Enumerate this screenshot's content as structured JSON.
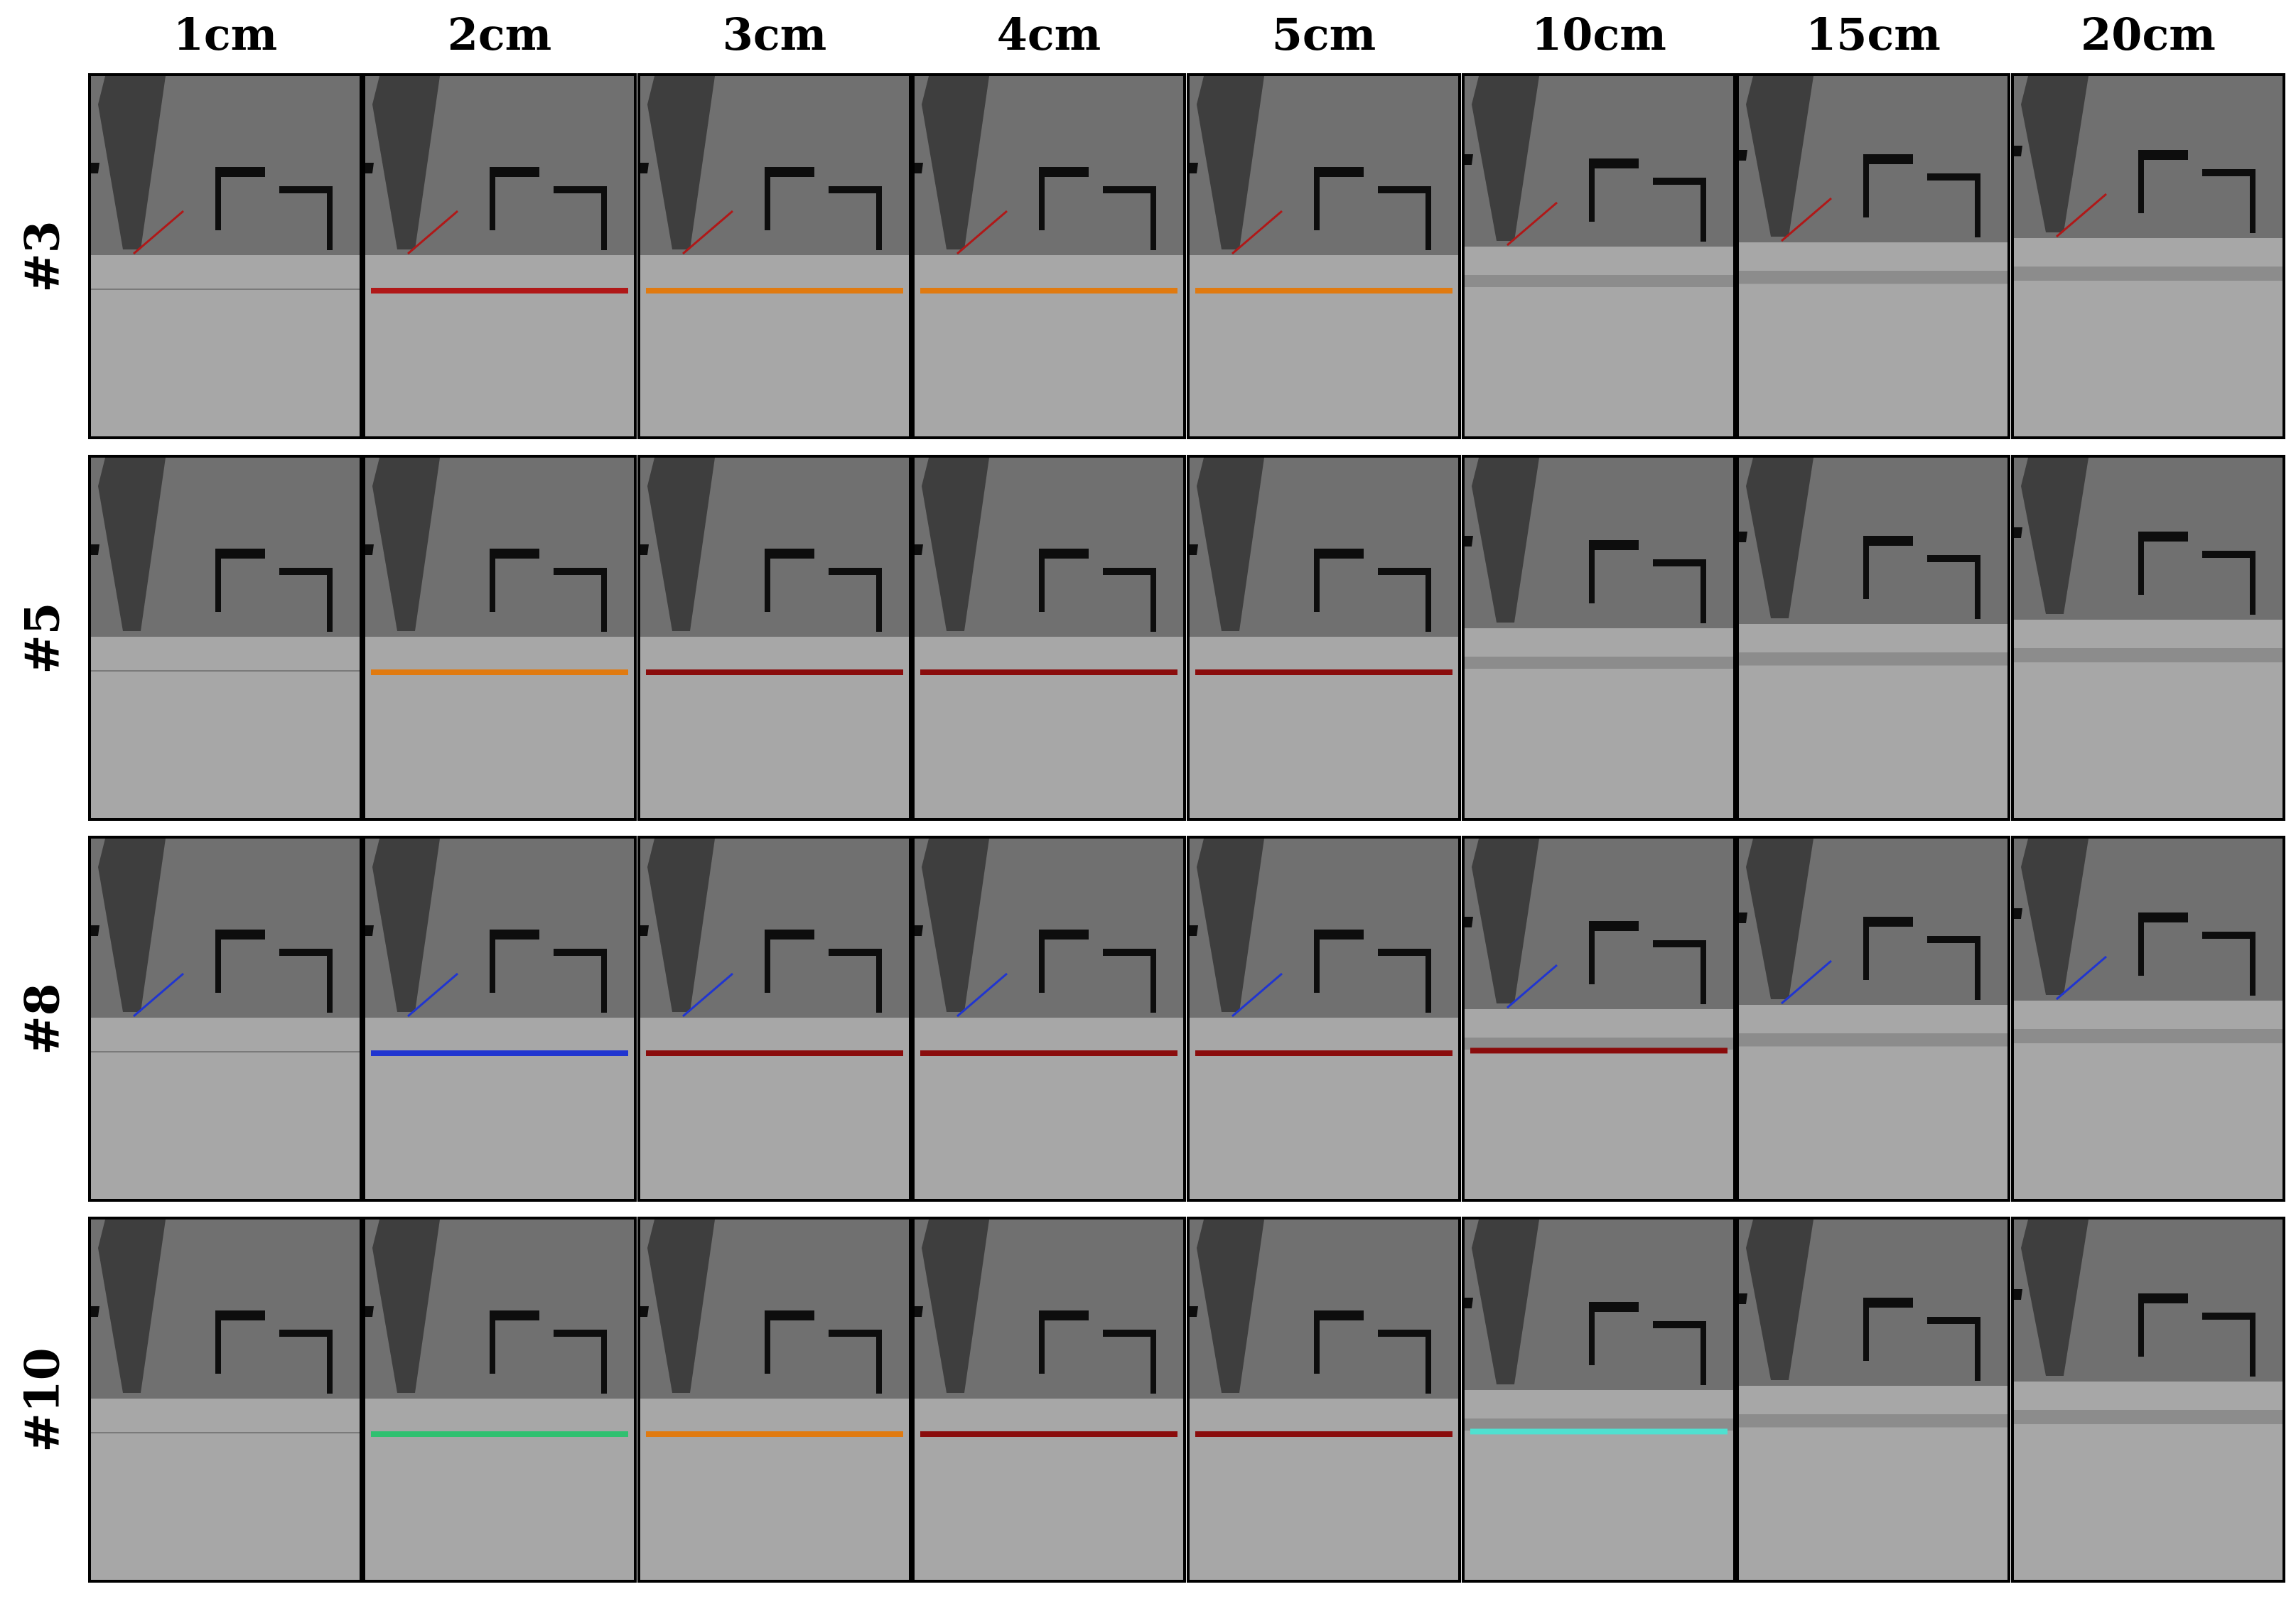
{
  "columns": [
    "1cm",
    "2cm",
    "3cm",
    "4cm",
    "5cm",
    "10cm",
    "15cm",
    "20cm"
  ],
  "rows": [
    "#3",
    "#5",
    "#8",
    "#10"
  ],
  "cells": [
    [
      {
        "drop": 0,
        "mark": "none",
        "edge": "red"
      },
      {
        "drop": 0,
        "mark": "red",
        "edge": "red"
      },
      {
        "drop": 0,
        "mark": "orange",
        "edge": "red"
      },
      {
        "drop": 0,
        "mark": "orange",
        "edge": "red"
      },
      {
        "drop": 0,
        "mark": "orange",
        "edge": "red"
      },
      {
        "drop": 10,
        "mark": "gray",
        "edge": "red"
      },
      {
        "drop": 15,
        "mark": "gray",
        "edge": "red"
      },
      {
        "drop": 20,
        "mark": "gray",
        "edge": "red"
      }
    ],
    [
      {
        "drop": 0,
        "mark": "none",
        "edge": "gray"
      },
      {
        "drop": 0,
        "mark": "orange",
        "edge": "gray"
      },
      {
        "drop": 0,
        "mark": "darkred",
        "edge": "gray"
      },
      {
        "drop": 0,
        "mark": "darkred",
        "edge": "gray"
      },
      {
        "drop": 0,
        "mark": "darkred",
        "edge": "gray"
      },
      {
        "drop": 10,
        "mark": "gray",
        "edge": "gray"
      },
      {
        "drop": 15,
        "mark": "gray",
        "edge": "gray"
      },
      {
        "drop": 20,
        "mark": "gray",
        "edge": "gray"
      }
    ],
    [
      {
        "drop": 0,
        "mark": "none",
        "edge": "blue"
      },
      {
        "drop": 0,
        "mark": "blue",
        "edge": "blue"
      },
      {
        "drop": 0,
        "mark": "darkred",
        "edge": "blue"
      },
      {
        "drop": 0,
        "mark": "darkred",
        "edge": "blue"
      },
      {
        "drop": 0,
        "mark": "darkred",
        "edge": "blue"
      },
      {
        "drop": 10,
        "mark": "darkred",
        "edge": "blue"
      },
      {
        "drop": 15,
        "mark": "gray",
        "edge": "blue"
      },
      {
        "drop": 20,
        "mark": "gray",
        "edge": "blue"
      }
    ],
    [
      {
        "drop": 0,
        "mark": "none",
        "edge": "gray"
      },
      {
        "drop": 0,
        "mark": "green",
        "edge": "gray"
      },
      {
        "drop": 0,
        "mark": "orange",
        "edge": "gray"
      },
      {
        "drop": 0,
        "mark": "darkred",
        "edge": "gray"
      },
      {
        "drop": 0,
        "mark": "darkred",
        "edge": "gray"
      },
      {
        "drop": 10,
        "mark": "cyan",
        "edge": "gray"
      },
      {
        "drop": 15,
        "mark": "gray",
        "edge": "gray"
      },
      {
        "drop": 20,
        "mark": "gray",
        "edge": "gray"
      }
    ]
  ],
  "colors": {
    "background": "#ffffff",
    "border": "#000000",
    "floor": "#a7a7a7",
    "wall": "#707070",
    "wall_dark": "#3e3e3e",
    "window": "#0d0d0d",
    "mark_red": "#b01818",
    "mark_darkred": "#8a0c0c",
    "mark_orange": "#e07a10",
    "mark_blue": "#2035d0",
    "mark_green": "#30c070",
    "mark_cyan": "#50e0d0",
    "mark_gray": "#8c8c8c"
  }
}
